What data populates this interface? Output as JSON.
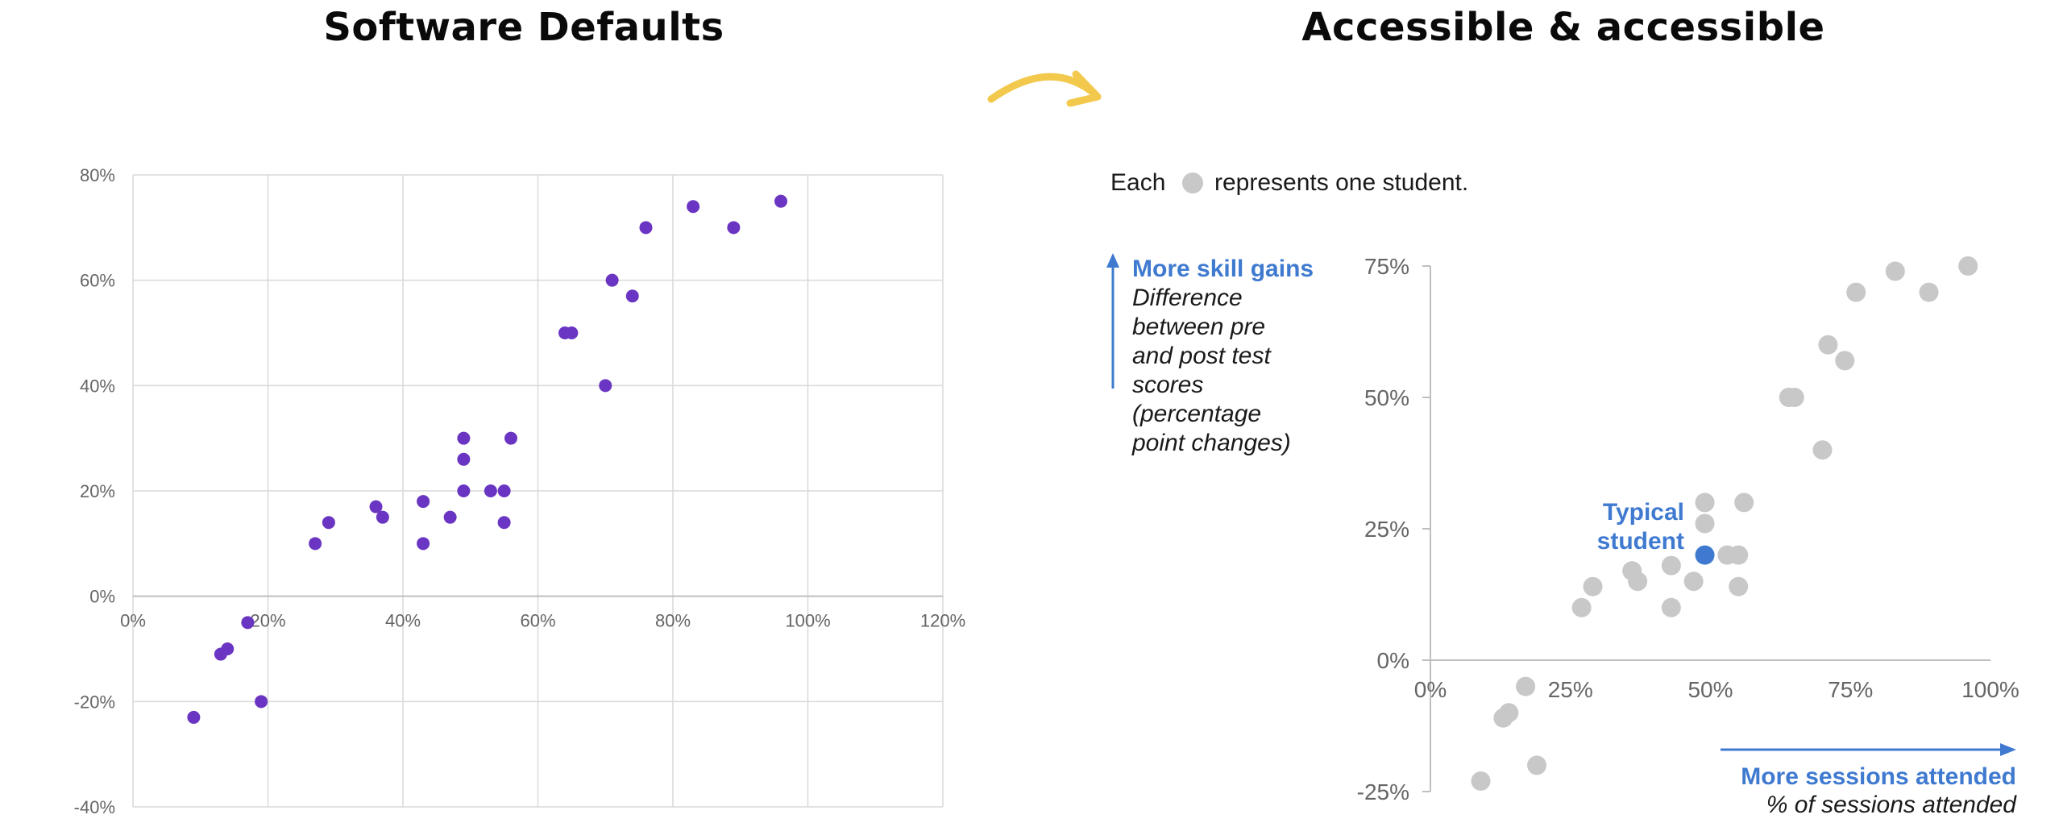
{
  "titles": {
    "left": "Software Defaults",
    "right": "Accessible & accessible"
  },
  "colors": {
    "default_points": "#6a35c2",
    "muted_points": "#c8c8c8",
    "highlight": "#3f7ad0",
    "arrow_accent": "#f2c94c"
  },
  "chart_data": [
    {
      "type": "scatter",
      "title": "",
      "xlabel": "",
      "ylabel": "",
      "xlim": [
        0,
        1.2
      ],
      "ylim": [
        -0.4,
        0.8
      ],
      "grid": true,
      "x_ticks": [
        "0%",
        "20%",
        "40%",
        "60%",
        "80%",
        "100%",
        "120%"
      ],
      "y_ticks": [
        "-40%",
        "-20%",
        "0%",
        "20%",
        "40%",
        "60%",
        "80%"
      ],
      "points": [
        {
          "x": 0.09,
          "y": -0.23
        },
        {
          "x": 0.13,
          "y": -0.11
        },
        {
          "x": 0.14,
          "y": -0.1
        },
        {
          "x": 0.17,
          "y": -0.05
        },
        {
          "x": 0.19,
          "y": -0.2
        },
        {
          "x": 0.27,
          "y": 0.1
        },
        {
          "x": 0.29,
          "y": 0.14
        },
        {
          "x": 0.36,
          "y": 0.17
        },
        {
          "x": 0.37,
          "y": 0.15
        },
        {
          "x": 0.43,
          "y": 0.18
        },
        {
          "x": 0.43,
          "y": 0.1
        },
        {
          "x": 0.47,
          "y": 0.15
        },
        {
          "x": 0.49,
          "y": 0.3
        },
        {
          "x": 0.49,
          "y": 0.26
        },
        {
          "x": 0.49,
          "y": 0.2
        },
        {
          "x": 0.53,
          "y": 0.2
        },
        {
          "x": 0.55,
          "y": 0.2
        },
        {
          "x": 0.55,
          "y": 0.14
        },
        {
          "x": 0.56,
          "y": 0.3
        },
        {
          "x": 0.64,
          "y": 0.5
        },
        {
          "x": 0.65,
          "y": 0.5
        },
        {
          "x": 0.7,
          "y": 0.4
        },
        {
          "x": 0.71,
          "y": 0.6
        },
        {
          "x": 0.74,
          "y": 0.57
        },
        {
          "x": 0.76,
          "y": 0.7
        },
        {
          "x": 0.83,
          "y": 0.74
        },
        {
          "x": 0.89,
          "y": 0.7
        },
        {
          "x": 0.96,
          "y": 0.75
        }
      ]
    },
    {
      "type": "scatter",
      "title": "",
      "xlabel": "More sessions attended",
      "xlabel_sub": "% of sessions attended",
      "ylabel": "More skill gains",
      "ylabel_sub": [
        "Difference",
        "between pre",
        "and post test",
        "scores",
        "(percentage",
        "point changes)"
      ],
      "xlim": [
        0,
        1.0
      ],
      "ylim": [
        -0.25,
        0.75
      ],
      "grid": false,
      "x_ticks": [
        "0%",
        "25%",
        "50%",
        "75%",
        "100%"
      ],
      "y_ticks": [
        "-25%",
        "0%",
        "25%",
        "50%",
        "75%"
      ],
      "legend_prefix": "Each",
      "legend_suffix": "represents one student.",
      "highlight_label": [
        "Typical",
        "student"
      ],
      "highlight_point": {
        "x": 0.49,
        "y": 0.2
      },
      "points": [
        {
          "x": 0.09,
          "y": -0.23
        },
        {
          "x": 0.13,
          "y": -0.11
        },
        {
          "x": 0.14,
          "y": -0.1
        },
        {
          "x": 0.17,
          "y": -0.05
        },
        {
          "x": 0.19,
          "y": -0.2
        },
        {
          "x": 0.27,
          "y": 0.1
        },
        {
          "x": 0.29,
          "y": 0.14
        },
        {
          "x": 0.36,
          "y": 0.17
        },
        {
          "x": 0.37,
          "y": 0.15
        },
        {
          "x": 0.43,
          "y": 0.18
        },
        {
          "x": 0.43,
          "y": 0.1
        },
        {
          "x": 0.47,
          "y": 0.15
        },
        {
          "x": 0.49,
          "y": 0.3
        },
        {
          "x": 0.49,
          "y": 0.26
        },
        {
          "x": 0.53,
          "y": 0.2
        },
        {
          "x": 0.55,
          "y": 0.2
        },
        {
          "x": 0.55,
          "y": 0.14
        },
        {
          "x": 0.56,
          "y": 0.3
        },
        {
          "x": 0.64,
          "y": 0.5
        },
        {
          "x": 0.65,
          "y": 0.5
        },
        {
          "x": 0.7,
          "y": 0.4
        },
        {
          "x": 0.71,
          "y": 0.6
        },
        {
          "x": 0.74,
          "y": 0.57
        },
        {
          "x": 0.76,
          "y": 0.7
        },
        {
          "x": 0.83,
          "y": 0.74
        },
        {
          "x": 0.89,
          "y": 0.7
        },
        {
          "x": 0.96,
          "y": 0.75
        }
      ]
    }
  ]
}
